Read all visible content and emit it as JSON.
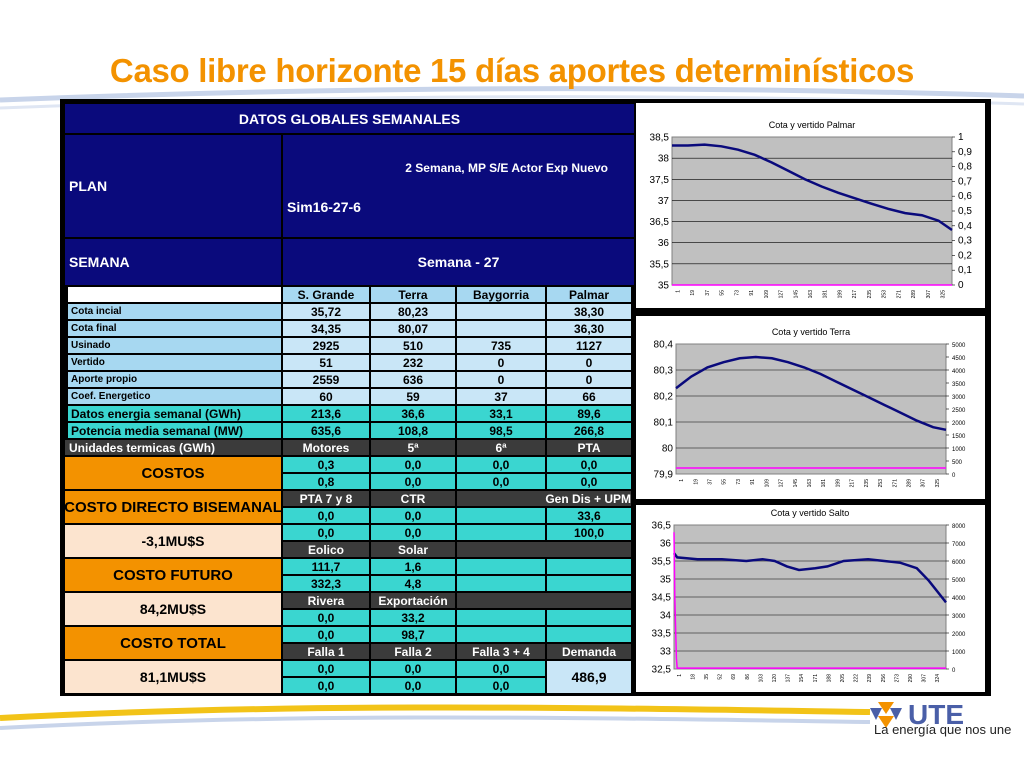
{
  "slide_title": "Caso libre horizonte 15 días aportes determinísticos",
  "slogan": "La energía que nos une",
  "table": {
    "title": "DATOS GLOBALES SEMANALES",
    "plan_label": "PLAN",
    "plan_value": "Sim16-27-6",
    "plan_desc": "2 Semana, MP S/E Actor Exp Nuevo",
    "semana_label": "SEMANA",
    "semana_value": "Semana - 27",
    "col_headers": [
      "S. Grande",
      "Terra",
      "Baygorria",
      "Palmar"
    ],
    "rows": [
      {
        "label": "Cota incial",
        "values": [
          "35,72",
          "80,23",
          "",
          "38,30"
        ]
      },
      {
        "label": "Cota final",
        "values": [
          "34,35",
          "80,07",
          "",
          "36,30"
        ]
      },
      {
        "label": "Usinado",
        "values": [
          "2925",
          "510",
          "735",
          "1127"
        ]
      },
      {
        "label": "Vertido",
        "values": [
          "51",
          "232",
          "0",
          "0"
        ]
      },
      {
        "label": "Aporte propio",
        "values": [
          "2559",
          "636",
          "0",
          "0"
        ]
      },
      {
        "label": "Coef. Energetico",
        "values": [
          "60",
          "59",
          "37",
          "66"
        ]
      }
    ],
    "energia": {
      "label": "Datos energia semanal  (GWh)",
      "values": [
        "213,6",
        "36,6",
        "33,1",
        "89,6"
      ]
    },
    "potencia": {
      "label": "Potencia media semanal (MW)",
      "values": [
        "635,6",
        "108,8",
        "98,5",
        "266,8"
      ]
    },
    "termicas": {
      "label": "Unidades termicas (GWh)",
      "headers": [
        "Motores",
        "5ª",
        "6ª",
        "PTA"
      ]
    },
    "costos_label": "COSTOS",
    "thermal_rows": [
      [
        "0,3",
        "0,0",
        "0,0",
        "0,0"
      ],
      [
        "0,8",
        "0,0",
        "0,0",
        "0,0"
      ]
    ],
    "costo_directo_label": "COSTO DIRECTO BISEMANAL",
    "costo_directo_value": "-3,1MU$S",
    "g2_headers": [
      "PTA 7 y 8",
      "CTR",
      "Gen Dis + UPM"
    ],
    "g2_rows": [
      [
        "0,0",
        "0,0",
        "33,6"
      ],
      [
        "0,0",
        "0,0",
        "100,0"
      ]
    ],
    "g3_headers": [
      "Eolico",
      "Solar"
    ],
    "g3_rows": [
      [
        "111,7",
        "1,6"
      ],
      [
        "332,3",
        "4,8"
      ]
    ],
    "costo_futuro_label": "COSTO FUTURO",
    "costo_futuro_value": "84,2MU$S",
    "g4_headers": [
      "Rivera",
      "Exportación"
    ],
    "g4_rows": [
      [
        "0,0",
        "33,2"
      ],
      [
        "0,0",
        "98,7"
      ]
    ],
    "costo_total_label": "COSTO TOTAL",
    "costo_total_value": "81,1MU$S",
    "g5_headers": [
      "Falla 1",
      "Falla 2",
      "Falla 3 + 4",
      "Demanda"
    ],
    "g5_rows": [
      [
        "0,0",
        "0,0",
        "0,0"
      ],
      [
        "0,0",
        "0,0",
        "0,0"
      ]
    ],
    "demanda_value": "486,9"
  },
  "chart_data": [
    {
      "type": "line",
      "title": "Cota y vertido Palmar",
      "x_ticks": [
        "1",
        "19",
        "37",
        "55",
        "73",
        "91",
        "109",
        "127",
        "145",
        "163",
        "181",
        "199",
        "217",
        "235",
        "253",
        "271",
        "289",
        "307",
        "325"
      ],
      "ylim": [
        35,
        38.5
      ],
      "yticks": [
        "38,5",
        "38",
        "37,5",
        "37",
        "36,5",
        "36",
        "35,5",
        "35"
      ],
      "y2lim": [
        0,
        1
      ],
      "y2ticks": [
        "1",
        "0,9",
        "0,8",
        "0,7",
        "0,6",
        "0,5",
        "0,4",
        "0,3",
        "0,2",
        "0,1",
        "0"
      ],
      "series": [
        {
          "color": "#0a0a7c",
          "axis": "left",
          "x": [
            1,
            20,
            40,
            60,
            80,
            100,
            120,
            140,
            160,
            180,
            200,
            220,
            240,
            260,
            280,
            300,
            320,
            336
          ],
          "values": [
            38.3,
            38.3,
            38.32,
            38.28,
            38.2,
            38.08,
            37.9,
            37.7,
            37.5,
            37.33,
            37.18,
            37.05,
            36.92,
            36.8,
            36.7,
            36.65,
            36.52,
            36.3
          ]
        },
        {
          "color": "#ff00ff",
          "axis": "right",
          "x": [
            1,
            336
          ],
          "values": [
            0,
            0
          ]
        }
      ],
      "grid": true
    },
    {
      "type": "line",
      "title": "Cota y vertido Terra",
      "x_ticks": [
        "1",
        "19",
        "37",
        "55",
        "73",
        "91",
        "109",
        "127",
        "145",
        "163",
        "181",
        "199",
        "217",
        "235",
        "253",
        "271",
        "289",
        "307",
        "325"
      ],
      "ylim": [
        79.9,
        80.4
      ],
      "yticks": [
        "80,4",
        "80,3",
        "80,2",
        "80,1",
        "80",
        "79,9"
      ],
      "y2lim": [
        0,
        5000
      ],
      "y2ticks": [
        "5000",
        "4500",
        "4000",
        "3500",
        "3000",
        "2500",
        "2000",
        "1500",
        "1000",
        "500",
        "0"
      ],
      "series": [
        {
          "color": "#0a0a7c",
          "axis": "left",
          "x": [
            1,
            20,
            40,
            60,
            80,
            100,
            120,
            140,
            160,
            180,
            200,
            220,
            240,
            260,
            280,
            300,
            320,
            336
          ],
          "values": [
            80.23,
            80.275,
            80.31,
            80.33,
            80.345,
            80.35,
            80.345,
            80.33,
            80.31,
            80.285,
            80.255,
            80.225,
            80.195,
            80.165,
            80.135,
            80.105,
            80.08,
            80.07
          ]
        },
        {
          "color": "#ff00ff",
          "axis": "right",
          "x": [
            1,
            336
          ],
          "values": [
            232,
            232
          ]
        }
      ],
      "grid": true
    },
    {
      "type": "line",
      "title": "Cota y vertido Salto",
      "x_ticks": [
        "1",
        "18",
        "35",
        "52",
        "69",
        "86",
        "103",
        "120",
        "137",
        "154",
        "171",
        "188",
        "205",
        "222",
        "239",
        "256",
        "273",
        "290",
        "307",
        "324"
      ],
      "ylim": [
        32.5,
        36.5
      ],
      "yticks": [
        "36,5",
        "36",
        "35,5",
        "35",
        "34,5",
        "34",
        "33,5",
        "33",
        "32,5"
      ],
      "y2lim": [
        0,
        8000
      ],
      "y2ticks": [
        "8000",
        "7000",
        "6000",
        "5000",
        "4000",
        "3000",
        "2000",
        "1000",
        "0"
      ],
      "series": [
        {
          "color": "#0a0a7c",
          "axis": "left",
          "x": [
            1,
            5,
            30,
            60,
            90,
            110,
            125,
            140,
            155,
            175,
            190,
            210,
            240,
            260,
            280,
            300,
            315,
            336
          ],
          "values": [
            35.72,
            35.6,
            35.55,
            35.55,
            35.5,
            35.55,
            35.5,
            35.35,
            35.25,
            35.3,
            35.35,
            35.5,
            35.55,
            35.5,
            35.45,
            35.3,
            34.95,
            34.35
          ]
        },
        {
          "color": "#ff00ff",
          "axis": "right",
          "x": [
            1,
            2,
            4,
            5,
            336
          ],
          "values": [
            7600,
            4000,
            600,
            51,
            51
          ]
        }
      ],
      "grid": true
    }
  ]
}
